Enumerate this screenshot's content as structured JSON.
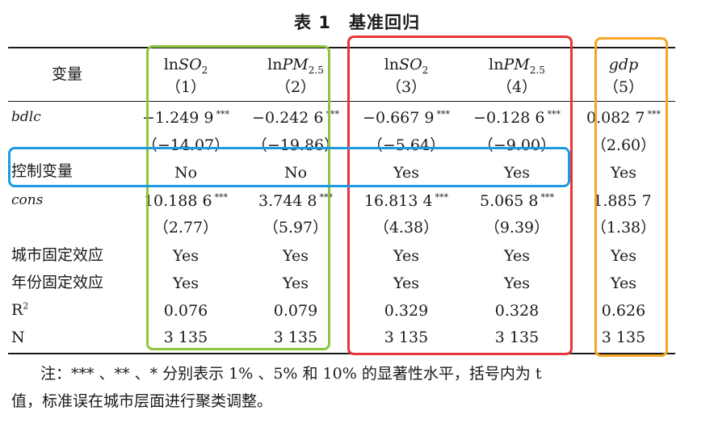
{
  "title": {
    "prefix": "表 1",
    "text": "基准回归"
  },
  "header": {
    "var_label": "变量",
    "columns": [
      {
        "base": "ln",
        "var": "SO",
        "sub": "2",
        "num": "（1）"
      },
      {
        "base": "ln",
        "var": "PM",
        "sub": "2.5",
        "num": "（2）"
      },
      {
        "base": "ln",
        "var": "SO",
        "sub": "2",
        "num": "（3）"
      },
      {
        "base": "ln",
        "var": "PM",
        "sub": "2.5",
        "num": "（4）"
      },
      {
        "base": "",
        "var": "gdp",
        "sub": "",
        "num": "（5）"
      }
    ]
  },
  "rows": {
    "bdlc": {
      "label": "bdlc",
      "coef": [
        "−1.249 9",
        "−0.242 6",
        "−0.667 9",
        "−0.128 6",
        "0.082 7"
      ],
      "stars": [
        "***",
        "***",
        "***",
        "***",
        "***"
      ],
      "t": [
        "（−14.07）",
        "（−19.86）",
        "（−5.64）",
        "（−9.00）",
        "（2.60）"
      ]
    },
    "controls": {
      "label": "控制变量",
      "values": [
        "No",
        "No",
        "Yes",
        "Yes",
        "Yes"
      ]
    },
    "cons": {
      "label": "cons",
      "coef": [
        "10.188 6",
        "3.744 8",
        "16.813 4",
        "5.065 8",
        "1.885 7"
      ],
      "stars": [
        "***",
        "***",
        "***",
        "***",
        ""
      ],
      "t": [
        "（2.77）",
        "（5.97）",
        "（4.38）",
        "（9.39）",
        "（1.38）"
      ]
    },
    "city_fe": {
      "label": "城市固定效应",
      "values": [
        "Yes",
        "Yes",
        "Yes",
        "Yes",
        "Yes"
      ]
    },
    "year_fe": {
      "label": "年份固定效应",
      "values": [
        "Yes",
        "Yes",
        "Yes",
        "Yes",
        "Yes"
      ]
    },
    "r2": {
      "label": "R",
      "sup": "2",
      "values": [
        "0.076",
        "0.079",
        "0.329",
        "0.328",
        "0.626"
      ]
    },
    "n": {
      "label": "N",
      "values": [
        "3 135",
        "3 135",
        "3 135",
        "3 135",
        "3 135"
      ]
    }
  },
  "note": {
    "line1": "注：*** 、** 、* 分别表示 1% 、5% 和 10% 的显著性水平，括号内为 t",
    "line2": "值，标准误在城市层面进行聚类调整。"
  },
  "colors": {
    "green": "#8cc63f",
    "red": "#e8333a",
    "blue": "#1e9be0",
    "orange": "#f5a623"
  }
}
